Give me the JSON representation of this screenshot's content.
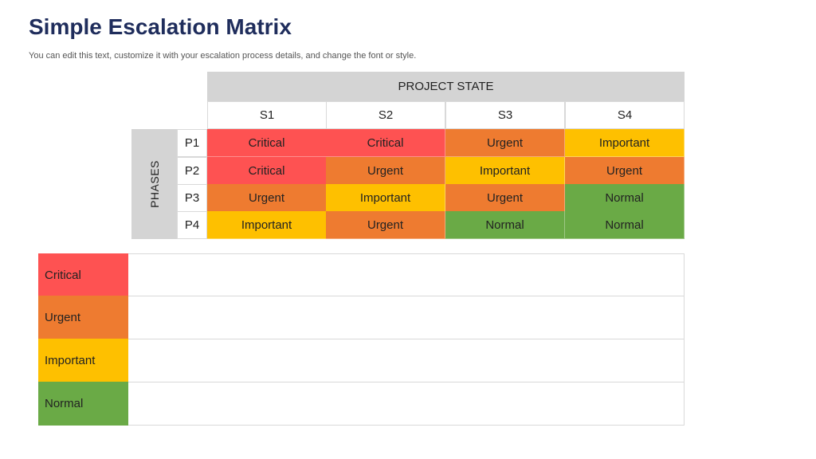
{
  "title": "Simple Escalation Matrix",
  "subtitle": "You can edit this text, customize it with your escalation process details, and change the font or style.",
  "colors": {
    "Critical": "#fe5252",
    "Urgent": "#ee7b30",
    "Important": "#fec000",
    "Normal": "#6aaa46"
  },
  "matrix": {
    "column_group_label": "PROJECT STATE",
    "row_group_label": "PHASES",
    "columns": [
      "S1",
      "S2",
      "S3",
      "S4"
    ],
    "rows": [
      {
        "label": "P1",
        "cells": [
          "Critical",
          "Critical",
          "Urgent",
          "Important"
        ]
      },
      {
        "label": "P2",
        "cells": [
          "Critical",
          "Urgent",
          "Important",
          "Urgent"
        ]
      },
      {
        "label": "P3",
        "cells": [
          "Urgent",
          "Important",
          "Urgent",
          "Normal"
        ]
      },
      {
        "label": "P4",
        "cells": [
          "Important",
          "Urgent",
          "Normal",
          "Normal"
        ]
      }
    ]
  },
  "legend": [
    {
      "label": "Critical",
      "description": ""
    },
    {
      "label": "Urgent",
      "description": ""
    },
    {
      "label": "Important",
      "description": ""
    },
    {
      "label": "Normal",
      "description": ""
    }
  ]
}
